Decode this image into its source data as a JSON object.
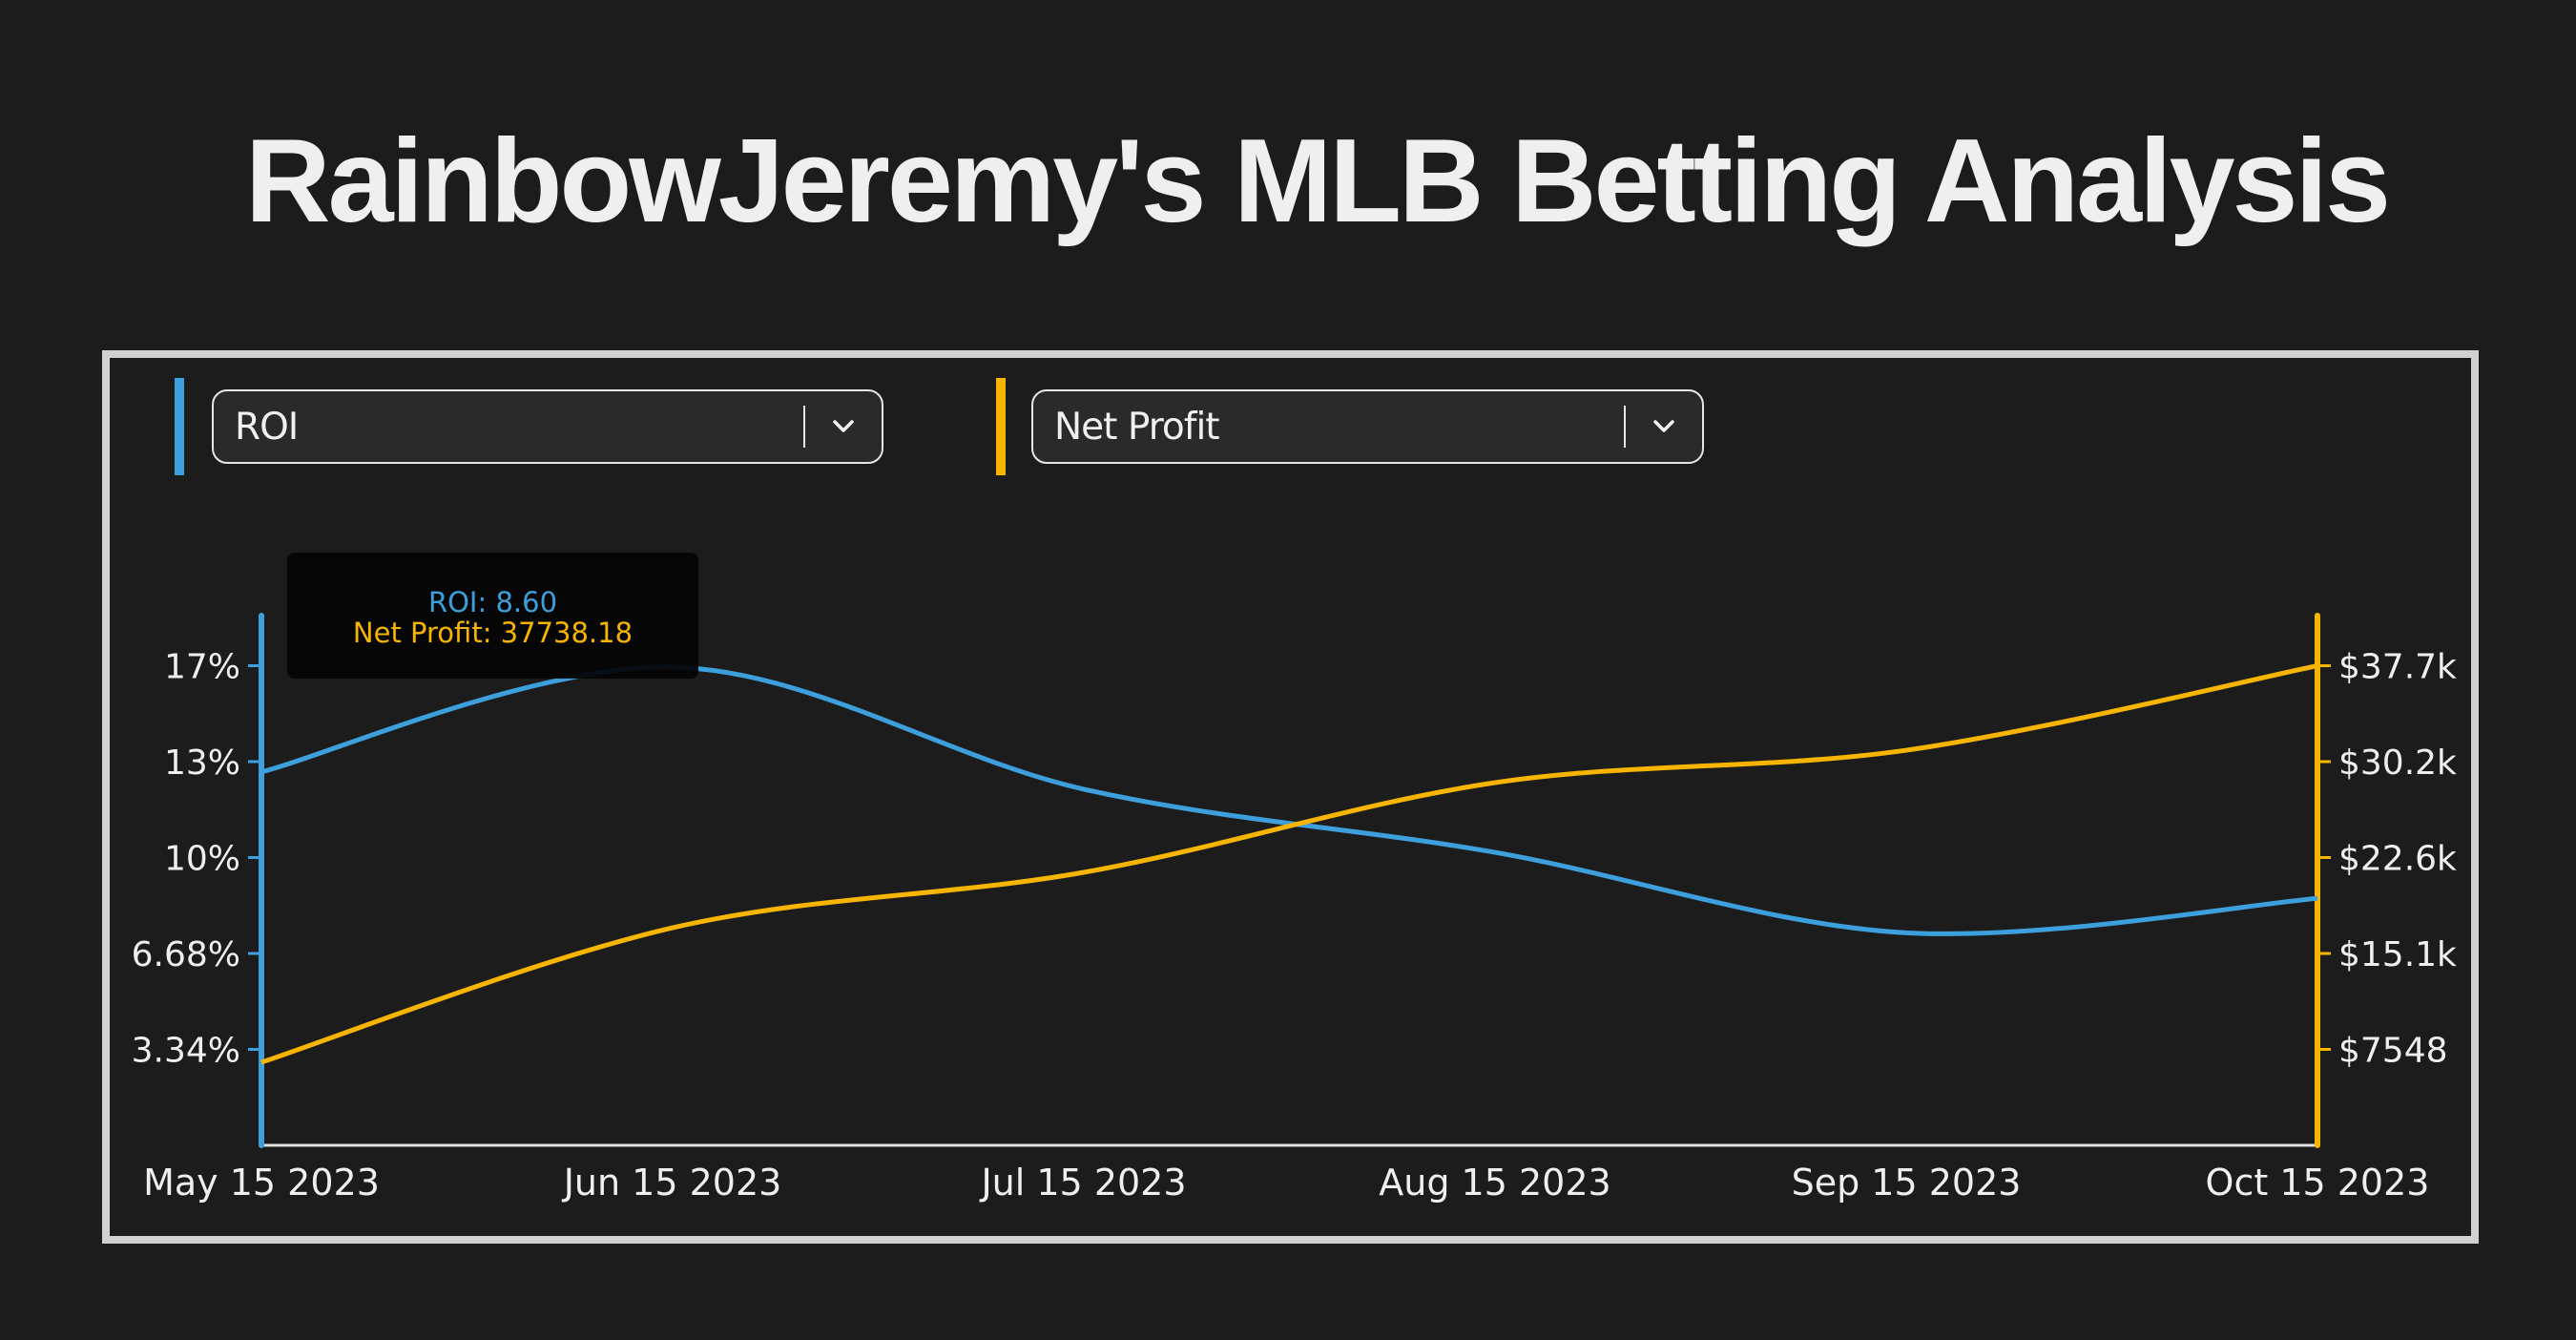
{
  "page": {
    "title": "RainbowJeremy's MLB Betting Analysis",
    "background": "#1c1c1c"
  },
  "controls": {
    "left_selector": {
      "value": "ROI",
      "color": "#3d9fdc",
      "icon": "chevron-down-icon"
    },
    "right_selector": {
      "value": "Net Profit",
      "color": "#f7b500",
      "icon": "chevron-down-icon"
    }
  },
  "tooltip": {
    "roi_label": "ROI: 8.60",
    "net_profit_label": "Net Profit: 37738.18"
  },
  "axes": {
    "left_ticks": [
      "17%",
      "13%",
      "10%",
      "6.68%",
      "3.34%"
    ],
    "right_ticks": [
      "$37.7k",
      "$30.2k",
      "$22.6k",
      "$15.1k",
      "$7548"
    ],
    "x_ticks": [
      "May 15 2023",
      "Jun 15 2023",
      "Jul 15 2023",
      "Aug 15 2023",
      "Sep 15 2023",
      "Oct 15 2023"
    ]
  },
  "chart_data": {
    "type": "line",
    "title": "RainbowJeremy's MLB Betting Analysis",
    "xlabel": "",
    "ylabel": "ROI",
    "y2label": "Net Profit",
    "categories": [
      "May 15 2023",
      "Jun 15 2023",
      "Jul 15 2023",
      "Aug 15 2023",
      "Sep 15 2023",
      "Oct 15 2023"
    ],
    "series": [
      {
        "name": "ROI",
        "axis": "left",
        "color": "#3d9fdc",
        "unit": "%",
        "values": [
          13.0,
          16.65,
          12.4,
          10.2,
          7.4,
          8.6
        ]
      },
      {
        "name": "Net Profit",
        "axis": "right",
        "color": "#f7b500",
        "unit": "$",
        "values": [
          6530,
          17120,
          21480,
          28540,
          31090,
          37738.18
        ]
      }
    ],
    "ylim": [
      0,
      18.4
    ],
    "y2lim": [
      0,
      41500
    ],
    "left_tick_values": [
      3.34,
      6.68,
      10.02,
      13.36,
      16.7
    ],
    "right_tick_values": [
      7548,
      15095,
      22643,
      30190,
      37738
    ],
    "grid": false,
    "legend": "dropdown selectors above chart",
    "curve": "smooth",
    "hover_point": {
      "category": "Oct 15 2023",
      "ROI": 8.6,
      "Net Profit": 37738.18
    }
  }
}
